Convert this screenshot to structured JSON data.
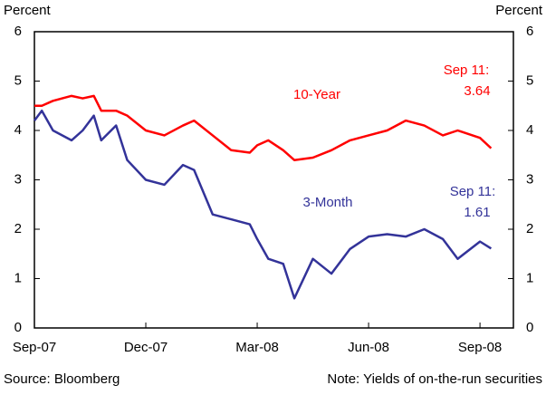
{
  "chart_data": {
    "type": "line",
    "y_label": "Percent",
    "y2_label": "Percent",
    "x": [
      0,
      0.2,
      0.5,
      1.0,
      1.3,
      1.6,
      1.8,
      2.2,
      2.5,
      3.0,
      3.5,
      4.0,
      4.3,
      4.8,
      5.3,
      5.8,
      6.0,
      6.3,
      6.7,
      7.0,
      7.5,
      8.0,
      8.5,
      9.0,
      9.5,
      10.0,
      10.5,
      11.0,
      11.4,
      12.0,
      12.3
    ],
    "series": [
      {
        "name": "10-Year",
        "color": "#ff0000",
        "values": [
          4.5,
          4.5,
          4.6,
          4.7,
          4.65,
          4.7,
          4.4,
          4.4,
          4.3,
          4.0,
          3.9,
          4.1,
          4.2,
          3.9,
          3.6,
          3.55,
          3.7,
          3.8,
          3.6,
          3.4,
          3.45,
          3.6,
          3.8,
          3.9,
          4.0,
          4.2,
          4.1,
          3.9,
          4.0,
          3.85,
          3.64
        ]
      },
      {
        "name": "3-Month",
        "color": "#333399",
        "values": [
          4.2,
          4.4,
          4.0,
          3.8,
          4.0,
          4.3,
          3.8,
          4.1,
          3.4,
          3.0,
          2.9,
          3.3,
          3.2,
          2.3,
          2.2,
          2.1,
          1.8,
          1.4,
          1.3,
          0.6,
          1.4,
          1.1,
          1.6,
          1.85,
          1.9,
          1.85,
          2.0,
          1.8,
          1.4,
          1.75,
          1.61
        ]
      }
    ],
    "annotations": [
      "10-Year",
      "Sep 11:",
      "3.64",
      "3-Month",
      "Sep 11:",
      "1.61"
    ],
    "xlim": [
      0,
      12.9
    ],
    "xticks": [
      {
        "value": 0,
        "label": "Sep-07"
      },
      {
        "value": 3,
        "label": "Dec-07"
      },
      {
        "value": 6,
        "label": "Mar-08"
      },
      {
        "value": 9,
        "label": "Jun-08"
      },
      {
        "value": 12,
        "label": "Sep-08"
      }
    ],
    "ylim": [
      0,
      6
    ],
    "yticks": [
      0,
      1,
      2,
      3,
      4,
      5,
      6
    ],
    "y2lim": [
      0,
      6
    ],
    "y2ticks": [
      0,
      1,
      2,
      3,
      4,
      5,
      6
    ],
    "source": "Source: Bloomberg",
    "note": "Note: Yields of on-the-run securities"
  }
}
